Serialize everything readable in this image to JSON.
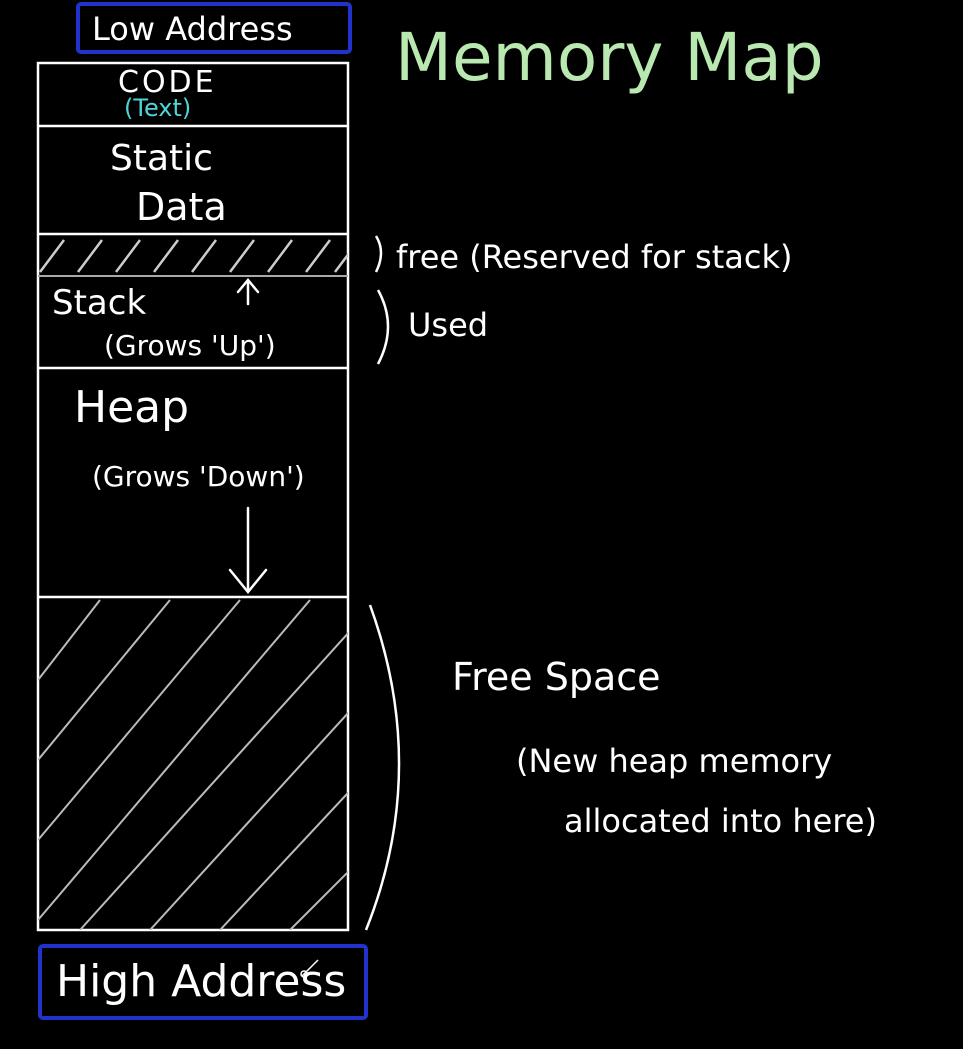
{
  "title": "Memory Map",
  "low_address_label": "Low Address",
  "high_address_label": "High Address",
  "segments": {
    "code": {
      "label": "CODE",
      "sublabel": "(Text)"
    },
    "static": {
      "line1": "Static",
      "line2": "Data"
    },
    "stack": {
      "label": "Stack",
      "sublabel": "(Grows 'Up')"
    },
    "heap": {
      "label": "Heap",
      "sublabel": "(Grows 'Down')"
    }
  },
  "annotations": {
    "free_reserved": "free (Reserved for stack)",
    "used": "Used",
    "free_space": "Free Space",
    "free_space_note_line1": "(New heap memory",
    "free_space_note_line2": "allocated into here)"
  },
  "colors": {
    "background": "#000000",
    "chalk": "#ffffff",
    "code_sublabel": "#4fd3d8",
    "title": "#b9e8b0",
    "address_box": "#2233cc"
  }
}
